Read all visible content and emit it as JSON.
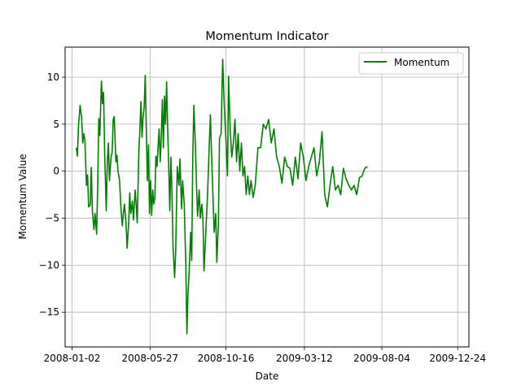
{
  "chart_data": {
    "type": "line",
    "title": "Momentum Indicator",
    "xlabel": "Date",
    "ylabel": "Momentum Value",
    "xlim": [
      "2007-12-20",
      "2010-01-14"
    ],
    "ylim": [
      -18.7,
      13.2
    ],
    "grid": true,
    "legend_position": "top-right",
    "x_ticks": [
      "2008-01-02",
      "2008-05-27",
      "2008-10-16",
      "2009-03-12",
      "2009-08-04",
      "2009-12-24"
    ],
    "y_ticks": [
      10,
      5,
      0,
      -5,
      -10,
      -15
    ],
    "series": [
      {
        "name": "Momentum",
        "color": "#008000",
        "points": [
          [
            "2008-01-10",
            2.5
          ],
          [
            "2008-01-12",
            1.6
          ],
          [
            "2008-01-14",
            4.8
          ],
          [
            "2008-01-17",
            7.0
          ],
          [
            "2008-01-20",
            5.6
          ],
          [
            "2008-01-22",
            3.0
          ],
          [
            "2008-01-24",
            4.0
          ],
          [
            "2008-01-26",
            3.3
          ],
          [
            "2008-01-29",
            -1.5
          ],
          [
            "2008-01-31",
            -0.4
          ],
          [
            "2008-02-02",
            -3.8
          ],
          [
            "2008-02-05",
            -3.6
          ],
          [
            "2008-02-07",
            0.4
          ],
          [
            "2008-02-09",
            -4.2
          ],
          [
            "2008-02-12",
            -6.2
          ],
          [
            "2008-02-14",
            -4.5
          ],
          [
            "2008-02-17",
            -6.7
          ],
          [
            "2008-02-19",
            -1.5
          ],
          [
            "2008-02-21",
            5.6
          ],
          [
            "2008-02-23",
            3.8
          ],
          [
            "2008-02-26",
            9.6
          ],
          [
            "2008-02-28",
            7.2
          ],
          [
            "2008-03-01",
            8.4
          ],
          [
            "2008-03-03",
            2.0
          ],
          [
            "2008-03-06",
            -4.2
          ],
          [
            "2008-03-08",
            1.0
          ],
          [
            "2008-03-10",
            3.0
          ],
          [
            "2008-03-12",
            -1.0
          ],
          [
            "2008-03-15",
            1.5
          ],
          [
            "2008-03-17",
            2.0
          ],
          [
            "2008-03-19",
            5.5
          ],
          [
            "2008-03-21",
            5.8
          ],
          [
            "2008-03-24",
            1.0
          ],
          [
            "2008-03-26",
            1.7
          ],
          [
            "2008-03-28",
            0.0
          ],
          [
            "2008-03-31",
            -1.0
          ],
          [
            "2008-04-02",
            -3.5
          ],
          [
            "2008-04-05",
            -5.8
          ],
          [
            "2008-04-07",
            -4.5
          ],
          [
            "2008-04-09",
            -3.5
          ],
          [
            "2008-04-12",
            -5.5
          ],
          [
            "2008-04-14",
            -8.2
          ],
          [
            "2008-04-17",
            -5.5
          ],
          [
            "2008-04-19",
            -2.3
          ],
          [
            "2008-04-21",
            -4.5
          ],
          [
            "2008-04-24",
            -3.2
          ],
          [
            "2008-04-26",
            -5.2
          ],
          [
            "2008-04-29",
            -2.0
          ],
          [
            "2008-05-01",
            -3.5
          ],
          [
            "2008-05-03",
            -5.5
          ],
          [
            "2008-05-06",
            2.0
          ],
          [
            "2008-05-08",
            4.5
          ],
          [
            "2008-05-10",
            7.4
          ],
          [
            "2008-05-12",
            3.6
          ],
          [
            "2008-05-14",
            5.8
          ],
          [
            "2008-05-16",
            6.8
          ],
          [
            "2008-05-18",
            10.2
          ],
          [
            "2008-05-20",
            4.5
          ],
          [
            "2008-05-22",
            -1.0
          ],
          [
            "2008-05-24",
            2.8
          ],
          [
            "2008-05-26",
            -4.5
          ],
          [
            "2008-05-28",
            -1.0
          ],
          [
            "2008-05-30",
            -4.7
          ],
          [
            "2008-06-01",
            -2.0
          ],
          [
            "2008-06-03",
            -3.5
          ],
          [
            "2008-06-05",
            -2.8
          ],
          [
            "2008-06-07",
            1.6
          ],
          [
            "2008-06-09",
            0.5
          ],
          [
            "2008-06-11",
            2.5
          ],
          [
            "2008-06-13",
            4.5
          ],
          [
            "2008-06-15",
            1.0
          ],
          [
            "2008-06-17",
            3.5
          ],
          [
            "2008-06-19",
            7.6
          ],
          [
            "2008-06-21",
            2.5
          ],
          [
            "2008-06-23",
            8.0
          ],
          [
            "2008-06-25",
            5.0
          ],
          [
            "2008-06-27",
            9.5
          ],
          [
            "2008-06-29",
            4.5
          ],
          [
            "2008-07-01",
            0.5
          ],
          [
            "2008-07-03",
            -4.2
          ],
          [
            "2008-07-05",
            1.5
          ],
          [
            "2008-07-07",
            -2.0
          ],
          [
            "2008-07-09",
            -8.0
          ],
          [
            "2008-07-12",
            -11.3
          ],
          [
            "2008-07-14",
            -8.5
          ],
          [
            "2008-07-17",
            0.5
          ],
          [
            "2008-07-20",
            -1.5
          ],
          [
            "2008-07-22",
            1.3
          ],
          [
            "2008-07-25",
            -4.0
          ],
          [
            "2008-07-27",
            -1.0
          ],
          [
            "2008-07-30",
            -3.5
          ],
          [
            "2008-08-02",
            -10.0
          ],
          [
            "2008-08-04",
            -17.3
          ],
          [
            "2008-08-06",
            -13.0
          ],
          [
            "2008-08-08",
            -11.0
          ],
          [
            "2008-08-11",
            -6.5
          ],
          [
            "2008-08-13",
            -9.5
          ],
          [
            "2008-08-15",
            1.5
          ],
          [
            "2008-08-17",
            7.0
          ],
          [
            "2008-08-20",
            2.5
          ],
          [
            "2008-08-22",
            -1.5
          ],
          [
            "2008-08-24",
            -4.8
          ],
          [
            "2008-08-27",
            -2.0
          ],
          [
            "2008-08-29",
            -5.0
          ],
          [
            "2008-09-01",
            -3.5
          ],
          [
            "2008-09-03",
            -5.0
          ],
          [
            "2008-09-05",
            -10.6
          ],
          [
            "2008-09-08",
            -7.0
          ],
          [
            "2008-09-10",
            -4.5
          ],
          [
            "2008-09-12",
            -2.0
          ],
          [
            "2008-09-15",
            3.0
          ],
          [
            "2008-09-17",
            6.0
          ],
          [
            "2008-09-19",
            2.0
          ],
          [
            "2008-09-22",
            -3.0
          ],
          [
            "2008-09-24",
            -6.5
          ],
          [
            "2008-09-27",
            -4.5
          ],
          [
            "2008-09-29",
            -9.7
          ],
          [
            "2008-10-02",
            -5.5
          ],
          [
            "2008-10-04",
            3.5
          ],
          [
            "2008-10-07",
            4.0
          ],
          [
            "2008-10-10",
            11.9
          ],
          [
            "2008-10-13",
            7.0
          ],
          [
            "2008-10-16",
            3.5
          ],
          [
            "2008-10-19",
            -0.5
          ],
          [
            "2008-10-21",
            10.1
          ],
          [
            "2008-10-24",
            4.5
          ],
          [
            "2008-10-27",
            1.5
          ],
          [
            "2008-10-30",
            3.0
          ],
          [
            "2008-11-02",
            5.5
          ],
          [
            "2008-11-05",
            1.0
          ],
          [
            "2008-11-08",
            4.0
          ],
          [
            "2008-11-11",
            0.0
          ],
          [
            "2008-11-14",
            3.0
          ],
          [
            "2008-11-17",
            -0.5
          ],
          [
            "2008-11-20",
            0.5
          ],
          [
            "2008-11-23",
            -2.5
          ],
          [
            "2008-11-26",
            -0.5
          ],
          [
            "2008-11-29",
            -2.5
          ],
          [
            "2008-12-02",
            -1.0
          ],
          [
            "2008-12-06",
            -2.8
          ],
          [
            "2008-12-10",
            -1.5
          ],
          [
            "2008-12-15",
            2.5
          ],
          [
            "2008-12-20",
            2.5
          ],
          [
            "2008-12-25",
            5.0
          ],
          [
            "2008-12-30",
            4.5
          ],
          [
            "2009-01-04",
            5.5
          ],
          [
            "2009-01-09",
            3.0
          ],
          [
            "2009-01-14",
            4.5
          ],
          [
            "2009-01-19",
            1.5
          ],
          [
            "2009-01-24",
            0.5
          ],
          [
            "2009-01-29",
            -1.3
          ],
          [
            "2009-02-03",
            1.5
          ],
          [
            "2009-02-08",
            0.5
          ],
          [
            "2009-02-13",
            0.3
          ],
          [
            "2009-02-18",
            -1.5
          ],
          [
            "2009-02-23",
            1.5
          ],
          [
            "2009-02-28",
            -0.8
          ],
          [
            "2009-03-05",
            3.0
          ],
          [
            "2009-03-10",
            1.5
          ],
          [
            "2009-03-15",
            -1.0
          ],
          [
            "2009-03-20",
            0.5
          ],
          [
            "2009-03-25",
            1.5
          ],
          [
            "2009-03-30",
            2.5
          ],
          [
            "2009-04-04",
            -0.5
          ],
          [
            "2009-04-09",
            1.0
          ],
          [
            "2009-04-14",
            4.2
          ],
          [
            "2009-04-19",
            -2.5
          ],
          [
            "2009-04-24",
            -3.8
          ],
          [
            "2009-04-29",
            -1.5
          ],
          [
            "2009-05-04",
            0.5
          ],
          [
            "2009-05-09",
            -2.0
          ],
          [
            "2009-05-14",
            -1.5
          ],
          [
            "2009-05-19",
            -2.5
          ],
          [
            "2009-05-24",
            0.3
          ],
          [
            "2009-05-29",
            -0.8
          ],
          [
            "2009-06-03",
            -1.5
          ],
          [
            "2009-06-08",
            -2.0
          ],
          [
            "2009-06-13",
            -1.5
          ],
          [
            "2009-06-18",
            -2.5
          ],
          [
            "2009-06-23",
            -0.7
          ],
          [
            "2009-06-28",
            -0.5
          ],
          [
            "2009-07-03",
            0.3
          ],
          [
            "2009-07-08",
            0.5
          ]
        ]
      }
    ]
  }
}
